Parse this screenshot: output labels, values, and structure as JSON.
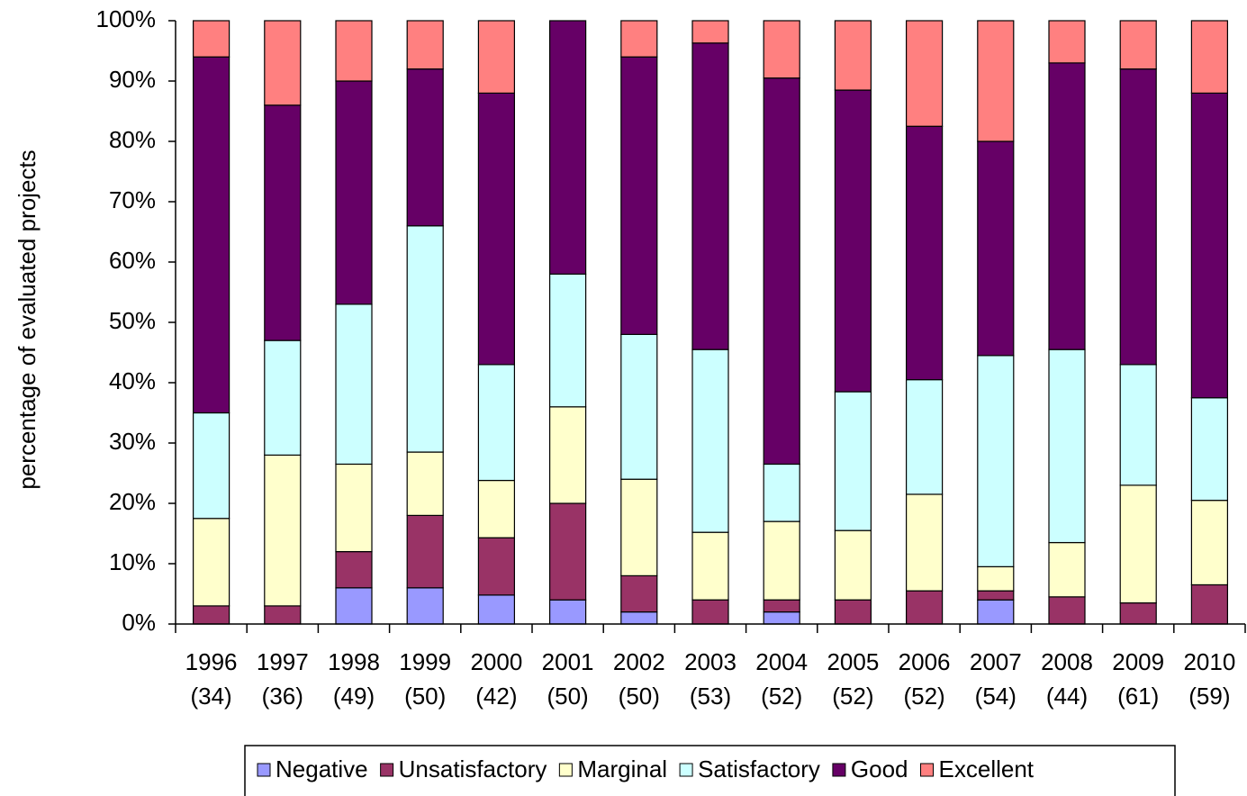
{
  "chart_data": {
    "type": "stacked_bar",
    "ylabel": "percentage of evaluated projects",
    "categories": [
      [
        "1996",
        "(34)"
      ],
      [
        "1997",
        "(36)"
      ],
      [
        "1998",
        "(49)"
      ],
      [
        "1999",
        "(50)"
      ],
      [
        "2000",
        "(42)"
      ],
      [
        "2001",
        "(50)"
      ],
      [
        "2002",
        "(50)"
      ],
      [
        "2003",
        "(53)"
      ],
      [
        "2004",
        "(52)"
      ],
      [
        "2005",
        "(52)"
      ],
      [
        "2006",
        "(52)"
      ],
      [
        "2007",
        "(54)"
      ],
      [
        "2008",
        "(44)"
      ],
      [
        "2009",
        "(61)"
      ],
      [
        "2010",
        "(59)"
      ]
    ],
    "series": [
      {
        "name": "Negative",
        "color": "#9999ff",
        "values": [
          0,
          0,
          6,
          6,
          4.8,
          4,
          2,
          0,
          2,
          0,
          0,
          4,
          0,
          0,
          0
        ]
      },
      {
        "name": "Unsatisfactory",
        "color": "#993366",
        "values": [
          3,
          3,
          6,
          12,
          9.5,
          16,
          6,
          4,
          2,
          4,
          5.5,
          1.5,
          4.5,
          3.5,
          6.5
        ]
      },
      {
        "name": "Marginal",
        "color": "#ffffcc",
        "values": [
          14.5,
          25,
          14.5,
          10.5,
          9.5,
          16,
          16,
          11.2,
          13,
          11.5,
          16,
          4,
          9,
          19.5,
          14
        ]
      },
      {
        "name": "Satisfactory",
        "color": "#ccffff",
        "values": [
          17.5,
          19,
          26.5,
          37.5,
          19.2,
          22,
          24,
          30.3,
          9.5,
          23,
          19,
          35,
          32,
          20,
          17
        ]
      },
      {
        "name": "Good",
        "color": "#660066",
        "values": [
          59,
          39,
          37,
          26,
          45,
          42,
          46,
          50.8,
          64,
          50,
          42,
          35.5,
          47.5,
          49,
          50.5
        ]
      },
      {
        "name": "Excellent",
        "color": "#ff8080",
        "values": [
          6,
          14,
          10,
          8,
          12,
          0,
          6,
          3.7,
          9.5,
          11.5,
          17.5,
          20,
          7,
          8,
          12
        ]
      }
    ],
    "ylim": [
      0,
      100
    ],
    "yticks": [
      {
        "value": 0,
        "label": "0%"
      },
      {
        "value": 10,
        "label": "10%"
      },
      {
        "value": 20,
        "label": "20%"
      },
      {
        "value": 30,
        "label": "30%"
      },
      {
        "value": 40,
        "label": "40%"
      },
      {
        "value": 50,
        "label": "50%"
      },
      {
        "value": 60,
        "label": "60%"
      },
      {
        "value": 70,
        "label": "70%"
      },
      {
        "value": 80,
        "label": "80%"
      },
      {
        "value": 90,
        "label": "90%"
      },
      {
        "value": 100,
        "label": "100%"
      }
    ],
    "legend": "bottom"
  }
}
